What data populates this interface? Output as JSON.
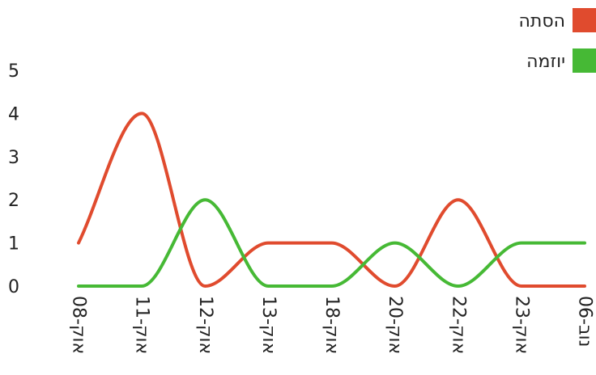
{
  "chart_data": {
    "type": "line",
    "categories": [
      "08-אוק",
      "11-אוק",
      "12-אוק",
      "13-אוק",
      "18-אוק",
      "20-אוק",
      "22-אוק",
      "23-אוק",
      "06-נוב"
    ],
    "series": [
      {
        "name": "הסתה",
        "color": "#e04b2e",
        "values": [
          1,
          4,
          0,
          1,
          1,
          0,
          2,
          0,
          0
        ]
      },
      {
        "name": "יוזמה",
        "color": "#46b935",
        "values": [
          0,
          0,
          2,
          0,
          0,
          1,
          0,
          1,
          1
        ]
      }
    ],
    "ylim": [
      0,
      5
    ],
    "yticks": [
      0,
      1,
      2,
      3,
      4,
      5
    ],
    "grid": false,
    "legend": "top-right",
    "smooth": true
  }
}
